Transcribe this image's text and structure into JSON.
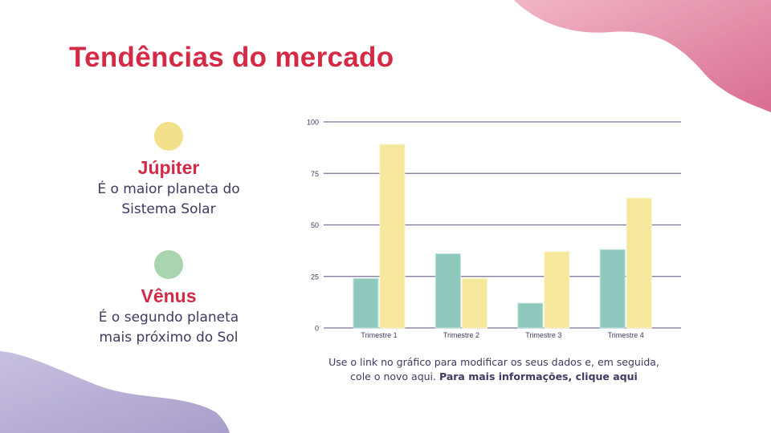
{
  "title": "Tendências do mercado",
  "planets": [
    {
      "name": "Júpiter",
      "desc_line1": "É o maior planeta do",
      "desc_line2": "Sistema  Solar",
      "color": "#f3e08a"
    },
    {
      "name": "Vênus",
      "desc_line1": "É o segundo planeta",
      "desc_line2": "mais próximo do Sol",
      "color": "#a9d4b0"
    }
  ],
  "caption": {
    "text": "Use o link no gráfico para modificar os seus dados e, em seguida, cole o novo aqui.",
    "link": "Para mais informações, clique aqui"
  },
  "colors": {
    "accent": "#d42a45",
    "teal": "#8fc9bd",
    "yellow": "#f5e89c",
    "grid": "#7a7196",
    "pink_blob": "#de7e9c",
    "lilac_blob": "#b7aed3"
  },
  "chart_data": {
    "type": "bar",
    "categories": [
      "Trimestre 1",
      "Trimestre 2",
      "Trimestre 3",
      "Trimestre 4"
    ],
    "series": [
      {
        "values": [
          24,
          36,
          12,
          38
        ],
        "color": "#8fc9bd"
      },
      {
        "values": [
          89,
          24,
          37,
          63
        ],
        "color": "#f5e89c"
      }
    ],
    "yticks": [
      "0",
      "25",
      "50",
      "75",
      "100"
    ],
    "ylim": [
      0,
      100
    ],
    "grid": true,
    "legend": "none"
  }
}
